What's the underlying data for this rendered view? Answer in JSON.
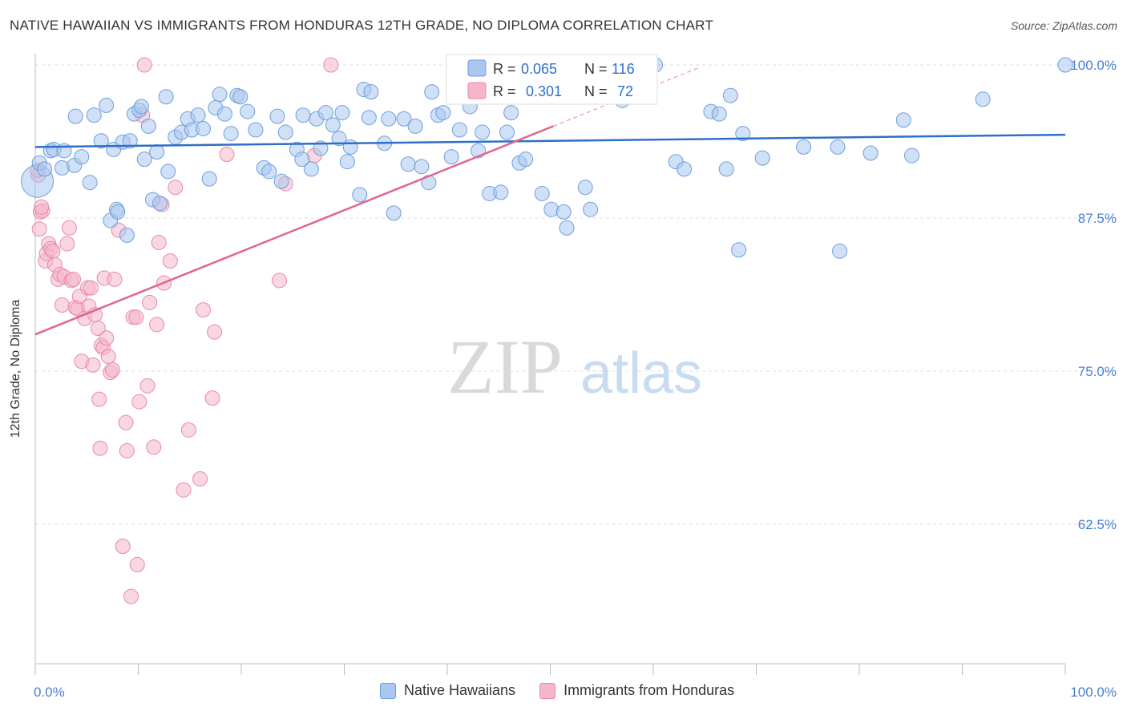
{
  "title": "NATIVE HAWAIIAN VS IMMIGRANTS FROM HONDURAS 12TH GRADE, NO DIPLOMA CORRELATION CHART",
  "source": "Source: ZipAtlas.com",
  "watermark": {
    "zip": "ZIP",
    "atlas": "atlas"
  },
  "colors": {
    "blue_fill": "#a9c7ef",
    "blue_stroke": "#6f9fdc",
    "blue_line": "#2e6fc9",
    "pink_fill": "#f4b6c8",
    "pink_stroke": "#e889a8",
    "pink_line": "#e0668f",
    "tick_label": "#4a7fd0",
    "grid": "#dddddd"
  },
  "legend_box": {
    "rows": [
      {
        "r_label": "R =",
        "r_value": "0.065",
        "n_label": "N =",
        "n_value": "116"
      },
      {
        "r_label": "R =",
        "r_value": "0.301",
        "n_label": "N =",
        "n_value": "72"
      }
    ]
  },
  "legend_bottom": [
    "Native Hawaiians",
    "Immigrants from Honduras"
  ],
  "chart_data": {
    "type": "scatter",
    "title": "NATIVE HAWAIIAN VS IMMIGRANTS FROM HONDURAS 12TH GRADE, NO DIPLOMA CORRELATION CHART",
    "xlabel": "",
    "ylabel": "12th Grade, No Diploma",
    "xlim": [
      0,
      100
    ],
    "ylim": [
      52.5,
      101.5
    ],
    "x_tick_labels": [
      "0.0%",
      "100.0%"
    ],
    "y_ticks": [
      62.5,
      75.0,
      87.5,
      100.0
    ],
    "y_tick_labels": [
      "62.5%",
      "75.0%",
      "87.5%",
      "100.0%"
    ],
    "grid": true,
    "legend_position": "top-center",
    "series": [
      {
        "name": "Native Hawaiians",
        "color": "#a9c7ef",
        "trend": {
          "x": [
            0,
            100
          ],
          "y": [
            93.3,
            94.3
          ]
        },
        "points": [
          [
            0.2,
            90.5
          ],
          [
            0.4,
            92.0
          ],
          [
            0.9,
            91.5
          ],
          [
            1.5,
            93.0
          ],
          [
            1.8,
            93.1
          ],
          [
            2.6,
            91.6
          ],
          [
            2.8,
            93.0
          ],
          [
            3.8,
            91.8
          ],
          [
            3.9,
            95.8
          ],
          [
            4.5,
            92.5
          ],
          [
            5.3,
            90.4
          ],
          [
            5.7,
            95.9
          ],
          [
            6.4,
            93.8
          ],
          [
            6.9,
            96.7
          ],
          [
            7.3,
            87.3
          ],
          [
            7.6,
            93.1
          ],
          [
            7.9,
            88.2
          ],
          [
            8.5,
            93.7
          ],
          [
            8.9,
            86.1
          ],
          [
            9.2,
            93.8
          ],
          [
            9.6,
            96.0
          ],
          [
            10.1,
            96.3
          ],
          [
            10.3,
            96.6
          ],
          [
            10.6,
            92.3
          ],
          [
            11.0,
            95.0
          ],
          [
            11.4,
            89.0
          ],
          [
            11.8,
            92.9
          ],
          [
            12.1,
            88.7
          ],
          [
            12.7,
            97.4
          ],
          [
            12.9,
            91.3
          ],
          [
            13.6,
            94.1
          ],
          [
            14.2,
            94.5
          ],
          [
            14.8,
            95.6
          ],
          [
            15.2,
            94.7
          ],
          [
            15.8,
            95.9
          ],
          [
            16.3,
            94.8
          ],
          [
            16.9,
            90.7
          ],
          [
            17.5,
            96.5
          ],
          [
            17.9,
            97.6
          ],
          [
            18.4,
            96.0
          ],
          [
            19.0,
            94.4
          ],
          [
            19.6,
            97.5
          ],
          [
            19.9,
            97.4
          ],
          [
            20.6,
            96.2
          ],
          [
            21.4,
            94.7
          ],
          [
            22.2,
            91.6
          ],
          [
            22.7,
            91.3
          ],
          [
            23.5,
            95.8
          ],
          [
            23.9,
            90.5
          ],
          [
            24.3,
            94.5
          ],
          [
            25.4,
            93.1
          ],
          [
            25.9,
            92.3
          ],
          [
            26.8,
            91.5
          ],
          [
            27.3,
            95.6
          ],
          [
            27.7,
            93.2
          ],
          [
            28.2,
            96.1
          ],
          [
            28.9,
            95.1
          ],
          [
            29.5,
            94.0
          ],
          [
            29.8,
            96.1
          ],
          [
            30.3,
            92.1
          ],
          [
            30.6,
            93.3
          ],
          [
            31.5,
            89.4
          ],
          [
            31.9,
            98.0
          ],
          [
            32.4,
            95.7
          ],
          [
            32.6,
            97.8
          ],
          [
            33.9,
            93.6
          ],
          [
            34.3,
            95.6
          ],
          [
            34.8,
            87.9
          ],
          [
            35.8,
            95.6
          ],
          [
            36.2,
            91.9
          ],
          [
            36.9,
            95.0
          ],
          [
            37.5,
            91.7
          ],
          [
            38.2,
            90.4
          ],
          [
            38.5,
            97.8
          ],
          [
            39.1,
            95.9
          ],
          [
            39.6,
            96.1
          ],
          [
            40.4,
            92.5
          ],
          [
            41.2,
            94.7
          ],
          [
            42.2,
            96.6
          ],
          [
            42.5,
            97.6
          ],
          [
            43.0,
            93.0
          ],
          [
            43.4,
            94.5
          ],
          [
            44.1,
            89.5
          ],
          [
            45.2,
            89.6
          ],
          [
            45.8,
            94.5
          ],
          [
            46.2,
            96.1
          ],
          [
            47.0,
            92.0
          ],
          [
            47.6,
            92.3
          ],
          [
            49.2,
            89.5
          ],
          [
            50.1,
            88.2
          ],
          [
            51.6,
            86.7
          ],
          [
            53.4,
            90.0
          ],
          [
            53.9,
            88.2
          ],
          [
            57.0,
            97.1
          ],
          [
            59.3,
            99.8
          ],
          [
            60.2,
            100.0
          ],
          [
            62.2,
            92.1
          ],
          [
            63.0,
            91.5
          ],
          [
            65.6,
            96.2
          ],
          [
            66.4,
            96.0
          ],
          [
            67.1,
            91.5
          ],
          [
            67.5,
            97.5
          ],
          [
            68.3,
            84.9
          ],
          [
            68.7,
            94.4
          ],
          [
            70.6,
            92.4
          ],
          [
            74.6,
            93.3
          ],
          [
            77.9,
            93.3
          ],
          [
            78.1,
            84.8
          ],
          [
            81.1,
            92.8
          ],
          [
            84.3,
            95.5
          ],
          [
            85.1,
            92.6
          ],
          [
            92.0,
            97.2
          ],
          [
            100.0,
            100.0
          ],
          [
            51.3,
            88.0
          ],
          [
            26.0,
            95.9
          ],
          [
            8.0,
            88.0
          ]
        ]
      },
      {
        "name": "Immigrants from Honduras",
        "color": "#f4b6c8",
        "trend": {
          "x": [
            0,
            50.3
          ],
          "y": [
            78.0,
            95.0
          ]
        },
        "trend_dashed": {
          "x": [
            50.3,
            64.5
          ],
          "y": [
            95.0,
            99.8
          ]
        },
        "points": [
          [
            0.3,
            91.0
          ],
          [
            0.4,
            86.6
          ],
          [
            0.5,
            88.0
          ],
          [
            0.7,
            88.1
          ],
          [
            1.0,
            84.0
          ],
          [
            1.1,
            84.6
          ],
          [
            1.3,
            85.4
          ],
          [
            1.5,
            85.0
          ],
          [
            1.7,
            84.8
          ],
          [
            1.9,
            83.7
          ],
          [
            2.2,
            82.5
          ],
          [
            2.4,
            82.9
          ],
          [
            2.6,
            80.4
          ],
          [
            2.8,
            82.7
          ],
          [
            3.1,
            85.4
          ],
          [
            3.3,
            86.7
          ],
          [
            3.5,
            82.4
          ],
          [
            3.7,
            82.5
          ],
          [
            3.9,
            80.2
          ],
          [
            4.1,
            80.1
          ],
          [
            4.3,
            81.1
          ],
          [
            4.5,
            75.8
          ],
          [
            4.8,
            79.3
          ],
          [
            5.1,
            81.8
          ],
          [
            5.2,
            80.3
          ],
          [
            5.4,
            81.8
          ],
          [
            5.6,
            75.5
          ],
          [
            5.8,
            79.6
          ],
          [
            6.1,
            78.5
          ],
          [
            6.2,
            72.7
          ],
          [
            6.4,
            77.1
          ],
          [
            6.6,
            76.9
          ],
          [
            6.7,
            82.6
          ],
          [
            6.9,
            77.7
          ],
          [
            7.1,
            76.2
          ],
          [
            7.3,
            74.9
          ],
          [
            7.5,
            75.1
          ],
          [
            7.7,
            82.5
          ],
          [
            8.1,
            86.5
          ],
          [
            8.5,
            60.7
          ],
          [
            8.8,
            70.8
          ],
          [
            8.9,
            68.5
          ],
          [
            9.3,
            56.6
          ],
          [
            9.5,
            79.4
          ],
          [
            9.9,
            59.2
          ],
          [
            10.1,
            72.5
          ],
          [
            10.4,
            95.9
          ],
          [
            10.6,
            100.0
          ],
          [
            10.9,
            73.8
          ],
          [
            11.1,
            80.6
          ],
          [
            11.5,
            68.8
          ],
          [
            11.8,
            78.8
          ],
          [
            12.0,
            85.5
          ],
          [
            12.3,
            88.6
          ],
          [
            12.5,
            82.2
          ],
          [
            13.1,
            84.0
          ],
          [
            13.6,
            90.0
          ],
          [
            14.4,
            65.3
          ],
          [
            14.9,
            70.2
          ],
          [
            16.0,
            66.2
          ],
          [
            17.2,
            72.8
          ],
          [
            17.4,
            78.2
          ],
          [
            18.6,
            92.7
          ],
          [
            23.7,
            82.4
          ],
          [
            24.3,
            90.3
          ],
          [
            27.1,
            92.6
          ],
          [
            28.7,
            100.0
          ],
          [
            6.3,
            68.7
          ],
          [
            9.8,
            79.4
          ],
          [
            16.3,
            80.0
          ],
          [
            0.2,
            91.4
          ],
          [
            0.6,
            88.4
          ]
        ]
      }
    ]
  }
}
